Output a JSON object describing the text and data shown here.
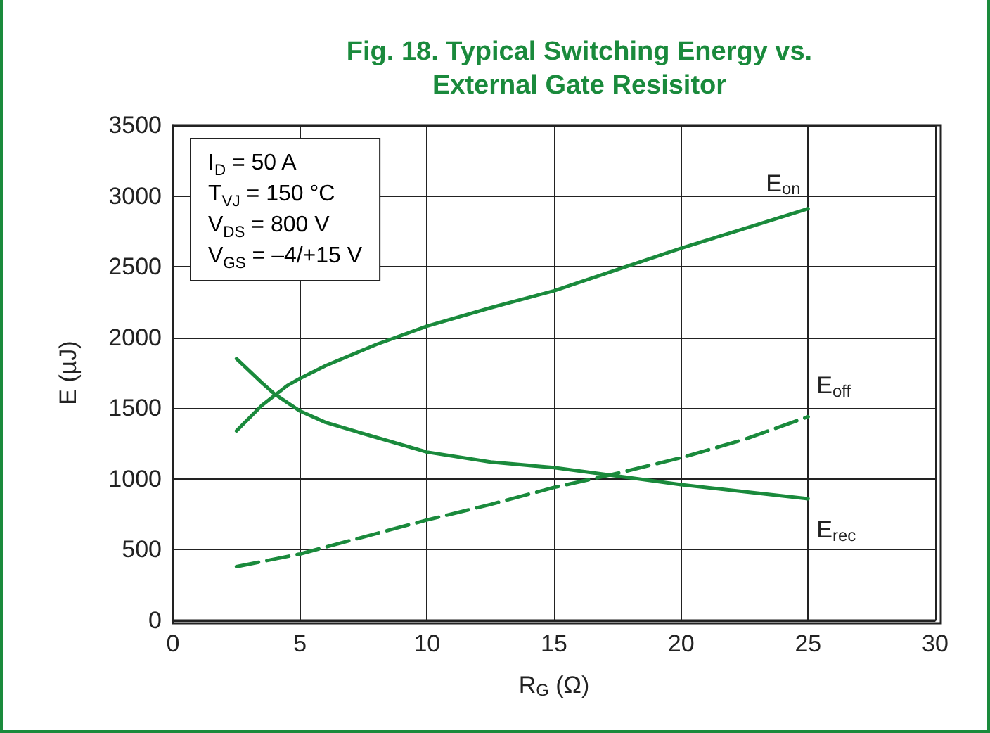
{
  "chart_data": {
    "type": "line",
    "title": "Fig. 18. Typical Switching Energy vs.\nExternal Gate Resisitor",
    "xlabel": "R$_{G}$ (Ω)",
    "ylabel": "E (µJ)",
    "xlim": [
      0,
      30
    ],
    "xticks": [
      0,
      5,
      10,
      15,
      20,
      25,
      30
    ],
    "ylim": [
      0,
      3500
    ],
    "yticks": [
      0,
      500,
      1000,
      1500,
      2000,
      2500,
      3000,
      3500
    ],
    "grid": true,
    "legend": false,
    "marker": "none",
    "annotations": [
      "I$_{D}$ = 50 A\nT$_{VJ}$ = 150 °C\nV$_{DS}$ = 800 V\nV$_{GS}$ = –4/+15 V"
    ],
    "series": [
      {
        "name": "E$_{on}$",
        "color": "#1a8a3c",
        "line_style": "solid",
        "x": [
          2.5,
          3.5,
          4.5,
          5,
          6,
          8,
          10,
          12.5,
          15,
          17.5,
          20,
          22.5,
          25
        ],
        "values": [
          1340,
          1520,
          1660,
          1710,
          1800,
          1950,
          2080,
          2210,
          2330,
          2480,
          2630,
          2770,
          2910
        ]
      },
      {
        "name": "E$_{off}$",
        "color": "#1a8a3c",
        "line_style": "dashed",
        "x": [
          2.5,
          5,
          7.5,
          10,
          12.5,
          15,
          17.5,
          20,
          22.5,
          25
        ],
        "values": [
          380,
          470,
          590,
          710,
          820,
          940,
          1040,
          1150,
          1280,
          1440
        ]
      },
      {
        "name": "E$_{rec}$",
        "color": "#1a8a3c",
        "line_style": "solid",
        "x": [
          2.5,
          3.5,
          4,
          5,
          6,
          7.5,
          10,
          12.5,
          15,
          17.5,
          20,
          22.5,
          25
        ],
        "values": [
          1850,
          1680,
          1600,
          1480,
          1400,
          1320,
          1190,
          1120,
          1080,
          1020,
          960,
          910,
          860
        ]
      }
    ]
  }
}
